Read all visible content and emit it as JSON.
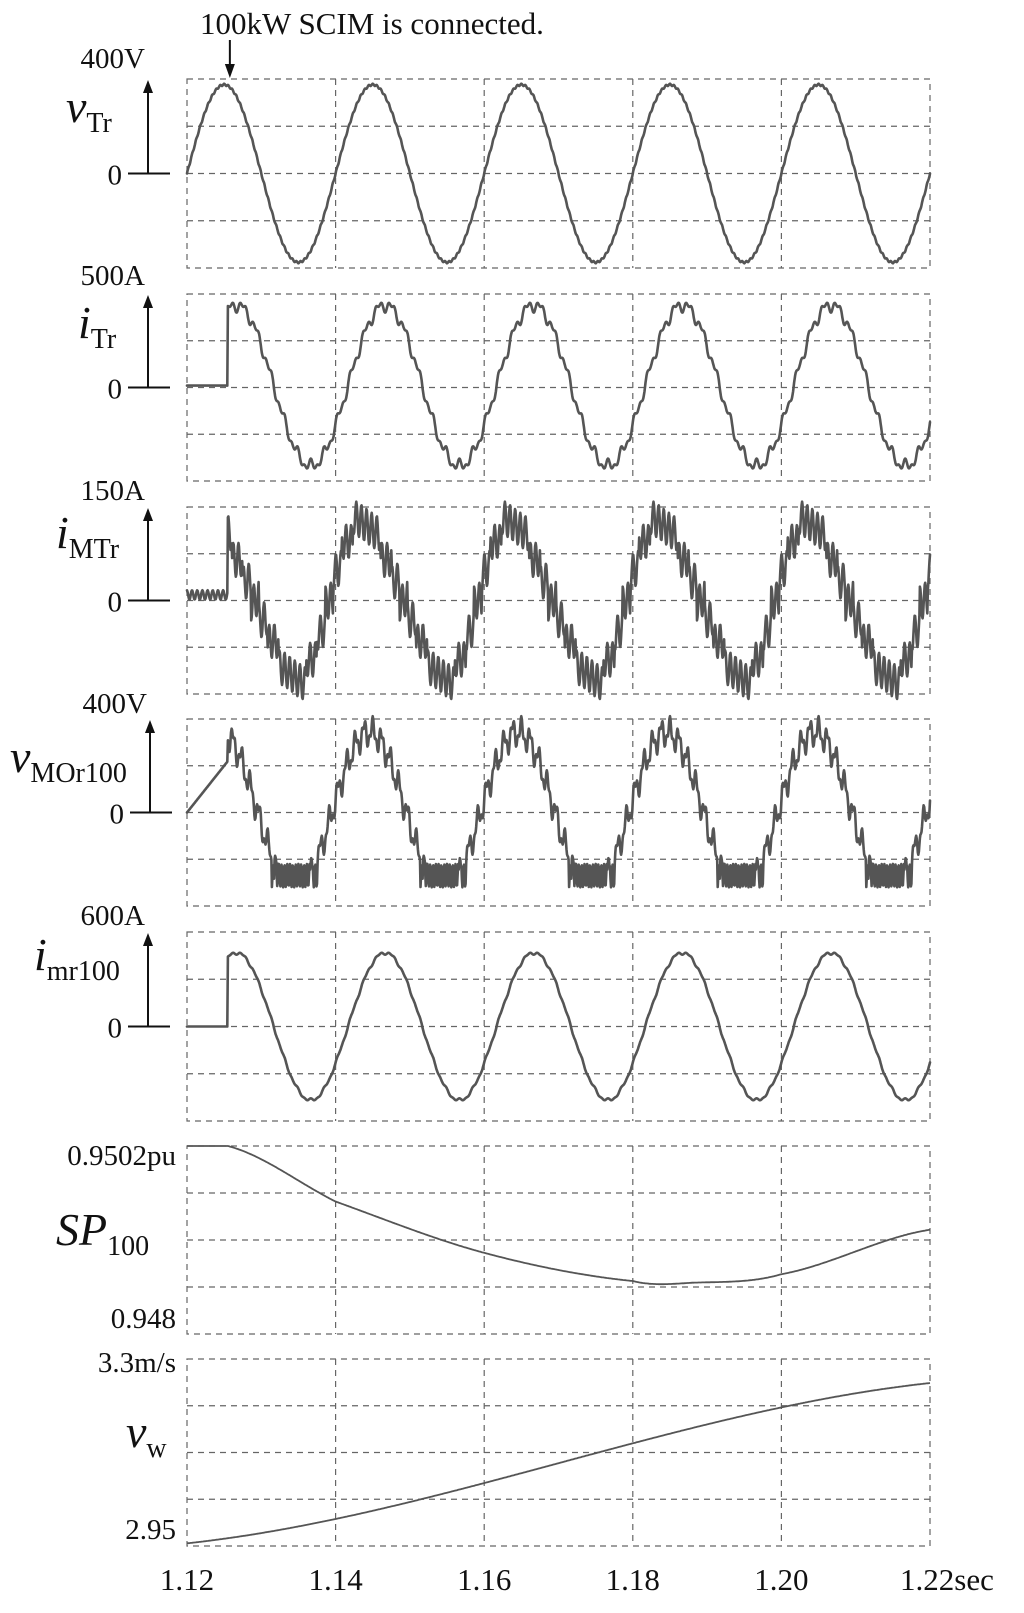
{
  "annotation": "100kW SCIM is connected.",
  "chart_data": {
    "type": "line",
    "x_ticks": [
      "1.12",
      "1.14",
      "1.16",
      "1.18",
      "1.20",
      "1.22sec"
    ],
    "xlim": [
      1.12,
      1.22
    ],
    "grid": true,
    "annotation_time": 1.1255,
    "panels": [
      {
        "id": "vTr",
        "var": "v",
        "sub": "Tr",
        "scale_label": "400V",
        "zero_label": "0",
        "fs": 50,
        "amp": 0.94,
        "phase_deg": 0,
        "offset": 0,
        "distortion": 0.01,
        "waveform": "sine",
        "ylim": [
          -400,
          400
        ]
      },
      {
        "id": "iTr",
        "var": "i",
        "sub": "Tr",
        "scale_label": "500A",
        "zero_label": "0",
        "fs": 50,
        "amp": 0.86,
        "phase_deg": -30,
        "offset": 0.02,
        "distortion": 0.08,
        "waveform": "switched",
        "start_time": 1.1255,
        "pre_value": 0.02,
        "ylim": [
          -500,
          500
        ]
      },
      {
        "id": "iMTr",
        "var": "i",
        "sub": "MTr",
        "scale_label": "150A",
        "zero_label": "0",
        "fs": 50,
        "amp": 0.8,
        "phase_deg": 15,
        "offset": 0.1,
        "distortion": 0.18,
        "waveform": "stepped",
        "start_time": 1.1255,
        "pre_value": 0.06,
        "ylim": [
          -150,
          150
        ]
      },
      {
        "id": "vMOr100",
        "var": "v",
        "sub": "MOr100",
        "scale_label": "400V",
        "zero_label": "0",
        "fs": 50,
        "amp": 0.86,
        "phase_deg": 0,
        "offset": 0,
        "distortion": 0.12,
        "waveform": "rectified",
        "start_time": 1.1255,
        "pre_value": 0.0,
        "ylim": [
          -400,
          400
        ]
      },
      {
        "id": "imr100",
        "var": "i",
        "sub": "mr100",
        "scale_label": "600A",
        "zero_label": "0",
        "fs": 50,
        "amp": 0.78,
        "phase_deg": -30,
        "offset": 0,
        "distortion": 0.02,
        "waveform": "switched",
        "start_time": 1.1255,
        "pre_value": 0,
        "ylim": [
          -600,
          600
        ]
      },
      {
        "id": "SP100",
        "var": "SP",
        "sub": "100",
        "scale_label": "0.9502pu",
        "zero_label": "0.948",
        "waveform": "curve",
        "x": [
          1.12,
          1.1255,
          1.14,
          1.16,
          1.18,
          1.188,
          1.2,
          1.22
        ],
        "y": [
          0.9502,
          0.9502,
          0.94955,
          0.94895,
          0.94862,
          0.9486,
          0.9487,
          0.94922
        ],
        "ylim": [
          0.948,
          0.9502
        ]
      },
      {
        "id": "vw",
        "var": "v",
        "sub": "w",
        "scale_label": "3.3m/s",
        "zero_label": "2.95",
        "waveform": "curve",
        "x": [
          1.12,
          1.22
        ],
        "y": [
          2.955,
          3.255
        ],
        "ylim": [
          2.95,
          3.3
        ]
      }
    ]
  }
}
